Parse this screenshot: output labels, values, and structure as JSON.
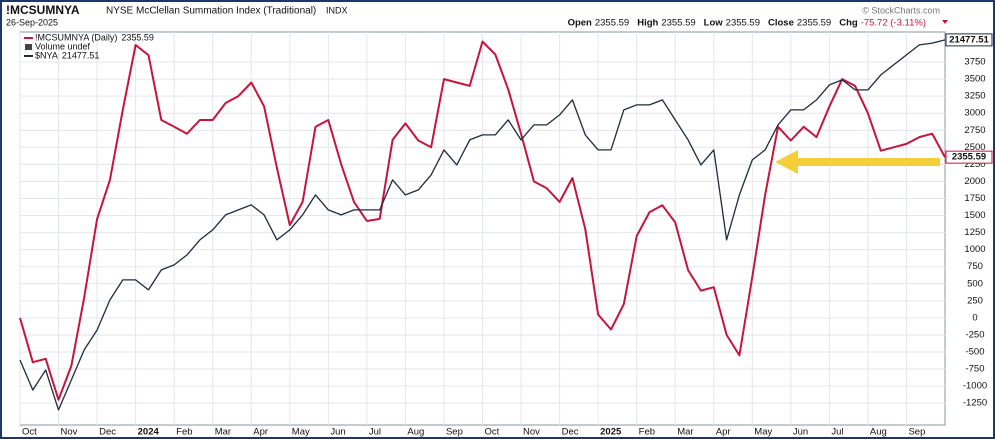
{
  "header": {
    "symbol": "!MCSUMNYA",
    "name": "NYSE McClellan Summation Index (Traditional)",
    "exchange": "INDX",
    "date": "26-Sep-2025",
    "ohlc": [
      {
        "label": "Open",
        "value": "2355.59"
      },
      {
        "label": "High",
        "value": "2355.59"
      },
      {
        "label": "Low",
        "value": "2355.59"
      },
      {
        "label": "Close",
        "value": "2355.59"
      },
      {
        "label": "Chg",
        "value": "-75.72 (-3.11%)"
      }
    ],
    "watermark": "© StockCharts.com"
  },
  "chart_data": {
    "type": "line",
    "legend_extra": "Volume undef",
    "categories": [
      "Oct",
      null,
      null,
      "Nov",
      null,
      null,
      "Dec",
      null,
      null,
      "2024",
      null,
      null,
      "Feb",
      null,
      null,
      "Mar",
      null,
      null,
      "Apr",
      null,
      null,
      "May",
      null,
      null,
      "Jun",
      null,
      null,
      "Jul",
      null,
      null,
      "Aug",
      null,
      null,
      "Sep",
      null,
      null,
      "Oct",
      null,
      null,
      "Nov",
      null,
      null,
      "Dec",
      null,
      null,
      "2025",
      null,
      null,
      "Feb",
      null,
      null,
      "Mar",
      null,
      null,
      "Apr",
      null,
      null,
      "May",
      null,
      null,
      "Jun",
      null,
      null,
      "Jul",
      null,
      null,
      "Aug",
      null,
      null,
      "Sep",
      null,
      null,
      null
    ],
    "ylim": [
      -1570,
      4190
    ],
    "yticks": [
      -1250,
      -1000,
      -750,
      -500,
      -250,
      0,
      250,
      500,
      750,
      1000,
      1250,
      1500,
      1750,
      2000,
      2250,
      2500,
      2750,
      3000,
      3250,
      3500,
      3750
    ],
    "y2lim": [
      14520,
      21620
    ],
    "grid": true,
    "series": [
      {
        "name": "!MCSUMNYA (Daily)",
        "color": "#c8143c",
        "values": [
          0,
          -650,
          -600,
          -1200,
          -700,
          300,
          1450,
          2020,
          3050,
          4000,
          3850,
          2900,
          2800,
          2700,
          2900,
          2900,
          3150,
          3250,
          3450,
          3100,
          2200,
          1360,
          1700,
          2800,
          2900,
          2250,
          1700,
          1420,
          1450,
          2610,
          2850,
          2600,
          2500,
          3500,
          3450,
          3400,
          4050,
          3860,
          3350,
          2700,
          2000,
          1900,
          1700,
          2050,
          1300,
          50,
          -170,
          200,
          1200,
          1550,
          1650,
          1400,
          700,
          400,
          450,
          -250,
          -550,
          600,
          1800,
          2800,
          2600,
          2800,
          2650,
          3100,
          3500,
          3400,
          3000,
          2450,
          2500,
          2550,
          2650,
          2700,
          2355.59
        ]
      },
      {
        "name": "$NYA",
        "color": "#1e2b40",
        "axis": "y2",
        "values": [
          15695,
          15153,
          15514,
          14792,
          15334,
          15876,
          16237,
          16779,
          17141,
          17141,
          16960,
          17322,
          17412,
          17593,
          17864,
          18045,
          18316,
          18406,
          18496,
          18316,
          17864,
          18045,
          18316,
          18677,
          18406,
          18316,
          18406,
          18406,
          18406,
          18948,
          18677,
          18767,
          19038,
          19490,
          19219,
          19671,
          19761,
          19761,
          20032,
          19671,
          19942,
          19942,
          20122,
          20393,
          19761,
          19490,
          19490,
          20213,
          20303,
          20303,
          20393,
          20032,
          19671,
          19219,
          19490,
          17864,
          18677,
          19309,
          19490,
          19942,
          20213,
          20213,
          20393,
          20664,
          20755,
          20574,
          20574,
          20845,
          21026,
          21206,
          21387,
          21420,
          21477.51
        ]
      }
    ]
  }
}
